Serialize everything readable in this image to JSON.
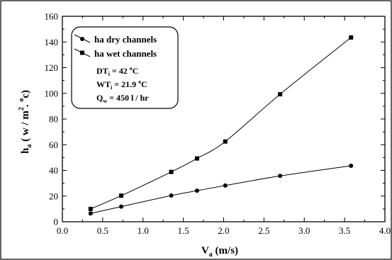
{
  "chart_data": {
    "type": "line",
    "x": [
      0.35,
      0.73,
      1.35,
      1.67,
      2.02,
      2.7,
      3.58
    ],
    "series": [
      {
        "name": "ha dry channels",
        "marker": "circle",
        "values": [
          6.5,
          11.8,
          20.4,
          24.2,
          28.2,
          35.7,
          43.6
        ]
      },
      {
        "name": "ha wet channels",
        "marker": "square",
        "values": [
          10.0,
          20.3,
          38.8,
          49.3,
          62.5,
          99.3,
          143.5
        ]
      }
    ],
    "xlim": [
      0.0,
      4.0
    ],
    "ylim": [
      0,
      160
    ],
    "xticks": [
      "0.0",
      "0.5",
      "1.0",
      "1.5",
      "2.0",
      "2.5",
      "3.0",
      "3.5",
      "4.0"
    ],
    "yticks": [
      "0",
      "20",
      "40",
      "60",
      "80",
      "100",
      "120",
      "140",
      "160"
    ],
    "xlabel": {
      "main": "V",
      "sub": "a",
      "rest": "  (m/s)"
    },
    "ylabel": {
      "main": "h",
      "sub": "a",
      "rest1": "  ( w / m",
      "sup": "2",
      "rest2": ". ",
      "sup2": "o",
      "rest3": "c)"
    },
    "grid": false,
    "legend_position": "top-left",
    "legend": {
      "entries": [
        "ha dry channels",
        "ha wet channels"
      ],
      "notes": [
        {
          "main": "DT",
          "sub": "i",
          "rest": " = 42 ",
          "sup": "o",
          "tail": "C"
        },
        {
          "main": "WT",
          "sub": "i",
          "rest": " = 21.9 ",
          "sup": "o",
          "tail": "C"
        },
        {
          "main": "Q",
          "sub": "w",
          "rest": " = 450 l / hr",
          "sup": "",
          "tail": ""
        }
      ]
    }
  }
}
